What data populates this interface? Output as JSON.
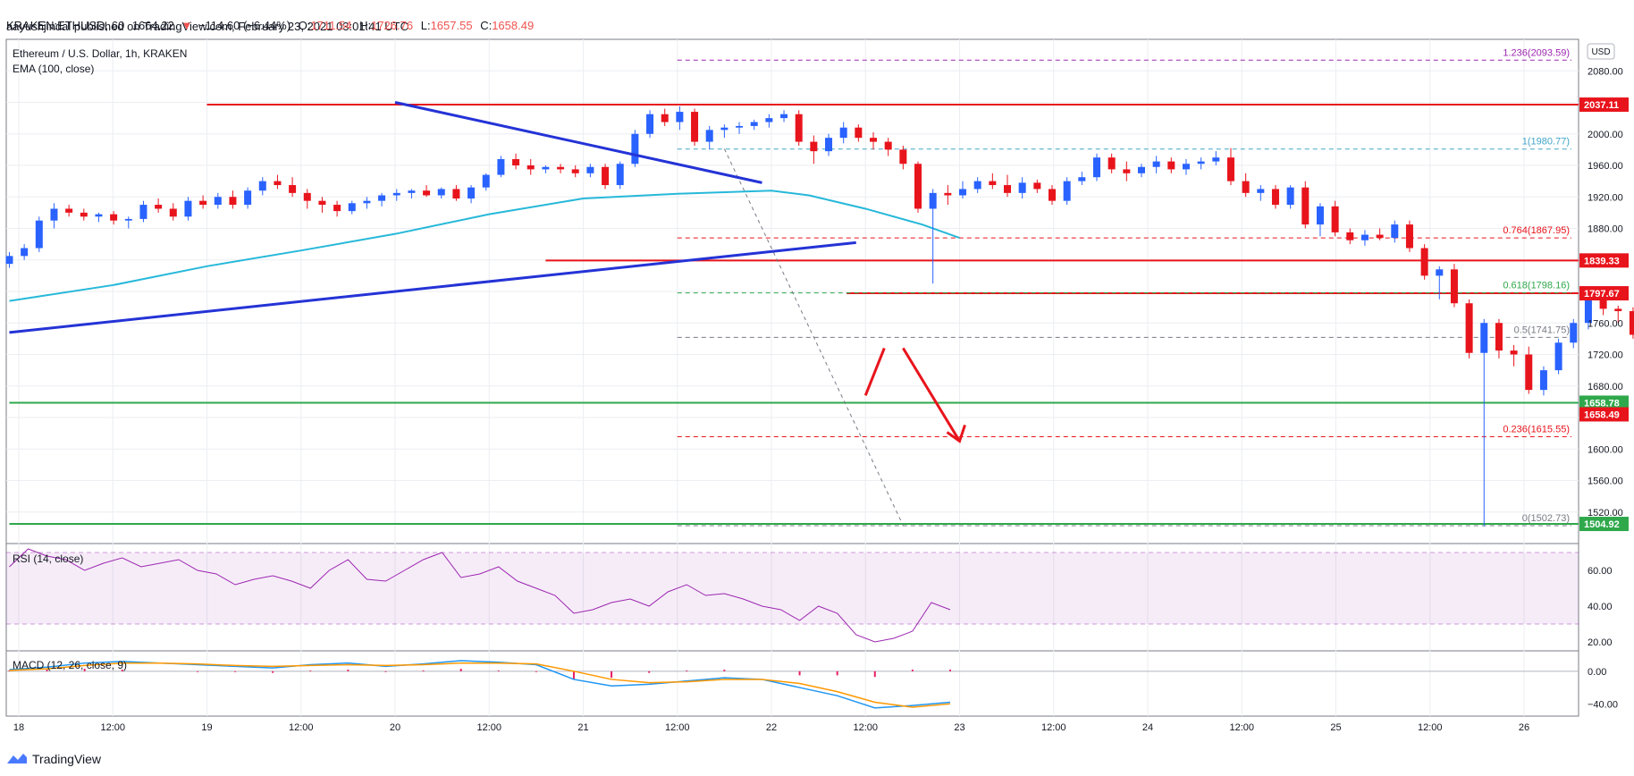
{
  "header": {
    "author": "aayushjindal",
    "published_text": "published on TradingView.com, February 23, 2021 03:01:41 UTC",
    "symbol": "KRAKEN:ETHUSD, 60",
    "last": "1664.22",
    "change": "−114.60 (−6.44%)",
    "o_label": "O:",
    "o_val": "1711.54",
    "h_label": "H:",
    "h_val": "1726.76",
    "l_label": "L:",
    "l_val": "1657.55",
    "c_label": "C:",
    "c_val": "1658.49"
  },
  "legend": {
    "title": "Ethereum / U.S. Dollar, 1h, KRAKEN",
    "ema": "EMA (100, close)",
    "currency": "USD",
    "rsi": "RSI (14, close)",
    "macd": "MACD (12, 26, close, 9)"
  },
  "footer": {
    "brand": "TradingView"
  },
  "colors": {
    "up": "#2962ff",
    "down": "#e8141c",
    "ema": "#26b8d9",
    "trend": "#2433d6",
    "hline": "#e8141c",
    "green": "#2fa84b",
    "fib_top": "#9c27b0",
    "fib_1": "#42a5c8",
    "rsi": "#9c27b0",
    "macd": "#2196f3",
    "signal": "#ff9800",
    "hist": "#e91e63"
  },
  "chart_data": [
    {
      "type": "candlestick",
      "title": "Ethereum / U.S. Dollar, 1h, KRAKEN",
      "y_range": [
        1480,
        2120
      ],
      "y_ticks": [
        1520,
        1560,
        1600,
        1640,
        1680,
        1720,
        1760,
        1800,
        1840,
        1880,
        1920,
        1960,
        2000,
        2040,
        2080
      ],
      "y_tick_labels": [
        "1520.00",
        "1560.00",
        "1600.00",
        "1640.00",
        "1680.00",
        "1720.00",
        "1760.00",
        "1800.00",
        "1840.00",
        "1880.00",
        "1920.00",
        "1960.00",
        "2000.00",
        "2040.00",
        "2080.00"
      ],
      "x_range_days": [
        17.95,
        26.5
      ],
      "x_ticks_days": [
        18,
        18.5,
        19,
        19.5,
        20,
        20.5,
        21,
        21.5,
        22,
        22.5,
        23,
        23.5,
        24,
        24.5,
        25,
        25.5,
        26
      ],
      "x_tick_labels": [
        "18",
        "12:00",
        "19",
        "12:00",
        "20",
        "12:00",
        "21",
        "12:00",
        "22",
        "12:00",
        "23",
        "12:00",
        "24",
        "12:00",
        "25",
        "12:00",
        "26"
      ],
      "candle_t0_day": 17.95,
      "candle_step_hours": 1.9,
      "candles": [
        [
          1835,
          1850,
          1830,
          1845
        ],
        [
          1845,
          1860,
          1840,
          1855
        ],
        [
          1855,
          1895,
          1850,
          1890
        ],
        [
          1890,
          1912,
          1880,
          1905
        ],
        [
          1905,
          1910,
          1895,
          1900
        ],
        [
          1900,
          1905,
          1890,
          1895
        ],
        [
          1895,
          1900,
          1888,
          1898
        ],
        [
          1898,
          1902,
          1885,
          1890
        ],
        [
          1890,
          1895,
          1880,
          1892
        ],
        [
          1892,
          1915,
          1888,
          1910
        ],
        [
          1910,
          1918,
          1900,
          1905
        ],
        [
          1905,
          1912,
          1890,
          1895
        ],
        [
          1895,
          1920,
          1890,
          1915
        ],
        [
          1915,
          1922,
          1905,
          1910
        ],
        [
          1910,
          1925,
          1905,
          1920
        ],
        [
          1920,
          1928,
          1905,
          1910
        ],
        [
          1910,
          1932,
          1905,
          1928
        ],
        [
          1928,
          1945,
          1922,
          1940
        ],
        [
          1940,
          1948,
          1930,
          1935
        ],
        [
          1935,
          1945,
          1920,
          1925
        ],
        [
          1925,
          1930,
          1905,
          1915
        ],
        [
          1915,
          1920,
          1900,
          1910
        ],
        [
          1910,
          1915,
          1895,
          1902
        ],
        [
          1902,
          1915,
          1898,
          1912
        ],
        [
          1912,
          1920,
          1905,
          1915
        ],
        [
          1915,
          1925,
          1908,
          1922
        ],
        [
          1922,
          1930,
          1915,
          1925
        ],
        [
          1925,
          1930,
          1918,
          1928
        ],
        [
          1928,
          1935,
          1920,
          1922
        ],
        [
          1922,
          1932,
          1918,
          1930
        ],
        [
          1930,
          1935,
          1915,
          1918
        ],
        [
          1918,
          1935,
          1912,
          1932
        ],
        [
          1932,
          1950,
          1928,
          1948
        ],
        [
          1948,
          1972,
          1945,
          1968
        ],
        [
          1968,
          1975,
          1955,
          1960
        ],
        [
          1960,
          1968,
          1948,
          1955
        ],
        [
          1955,
          1960,
          1950,
          1958
        ],
        [
          1958,
          1962,
          1950,
          1955
        ],
        [
          1955,
          1960,
          1945,
          1950
        ],
        [
          1950,
          1962,
          1945,
          1958
        ],
        [
          1958,
          1962,
          1930,
          1935
        ],
        [
          1935,
          1965,
          1930,
          1962
        ],
        [
          1962,
          2005,
          1958,
          2000
        ],
        [
          2000,
          2030,
          1995,
          2025
        ],
        [
          2025,
          2032,
          2010,
          2015
        ],
        [
          2015,
          2035,
          2005,
          2028
        ],
        [
          2028,
          2032,
          1985,
          1990
        ],
        [
          1990,
          2010,
          1980,
          2005
        ],
        [
          2005,
          2012,
          1995,
          2008
        ],
        [
          2008,
          2015,
          2000,
          2010
        ],
        [
          2010,
          2018,
          2005,
          2015
        ],
        [
          2015,
          2025,
          2008,
          2020
        ],
        [
          2020,
          2030,
          2015,
          2025
        ],
        [
          2025,
          2030,
          1985,
          1990
        ],
        [
          1990,
          1998,
          1962,
          1978
        ],
        [
          1978,
          2000,
          1972,
          1995
        ],
        [
          1995,
          2015,
          1988,
          2008
        ],
        [
          2008,
          2012,
          1990,
          1995
        ],
        [
          1995,
          2002,
          1980,
          1990
        ],
        [
          1990,
          1995,
          1972,
          1980
        ],
        [
          1980,
          1985,
          1955,
          1962
        ],
        [
          1962,
          1965,
          1900,
          1905
        ],
        [
          1905,
          1930,
          1810,
          1925
        ],
        [
          1925,
          1935,
          1910,
          1922
        ],
        [
          1922,
          1940,
          1918,
          1930
        ],
        [
          1930,
          1945,
          1925,
          1940
        ],
        [
          1940,
          1950,
          1930,
          1935
        ],
        [
          1935,
          1948,
          1920,
          1925
        ],
        [
          1925,
          1945,
          1918,
          1938
        ],
        [
          1938,
          1942,
          1925,
          1930
        ],
        [
          1930,
          1935,
          1910,
          1915
        ],
        [
          1915,
          1945,
          1910,
          1940
        ],
        [
          1940,
          1952,
          1935,
          1945
        ],
        [
          1945,
          1975,
          1940,
          1970
        ],
        [
          1970,
          1975,
          1950,
          1955
        ],
        [
          1955,
          1965,
          1940,
          1950
        ],
        [
          1950,
          1962,
          1945,
          1958
        ],
        [
          1958,
          1972,
          1950,
          1965
        ],
        [
          1965,
          1970,
          1950,
          1955
        ],
        [
          1955,
          1968,
          1948,
          1962
        ],
        [
          1962,
          1970,
          1955,
          1965
        ],
        [
          1965,
          1978,
          1960,
          1970
        ],
        [
          1970,
          1982,
          1935,
          1940
        ],
        [
          1940,
          1950,
          1920,
          1925
        ],
        [
          1925,
          1935,
          1915,
          1930
        ],
        [
          1930,
          1935,
          1905,
          1910
        ],
        [
          1910,
          1935,
          1905,
          1932
        ],
        [
          1932,
          1940,
          1880,
          1885
        ],
        [
          1885,
          1912,
          1870,
          1908
        ],
        [
          1908,
          1915,
          1870,
          1875
        ],
        [
          1875,
          1880,
          1860,
          1865
        ],
        [
          1865,
          1878,
          1858,
          1872
        ],
        [
          1872,
          1880,
          1865,
          1868
        ],
        [
          1868,
          1890,
          1862,
          1885
        ],
        [
          1885,
          1890,
          1850,
          1855
        ],
        [
          1855,
          1860,
          1815,
          1820
        ],
        [
          1820,
          1832,
          1790,
          1828
        ],
        [
          1828,
          1835,
          1780,
          1785
        ],
        [
          1785,
          1790,
          1715,
          1722
        ],
        [
          1722,
          1765,
          1502,
          1760
        ],
        [
          1760,
          1765,
          1715,
          1725
        ],
        [
          1725,
          1732,
          1705,
          1720
        ],
        [
          1720,
          1730,
          1670,
          1675
        ],
        [
          1675,
          1705,
          1668,
          1700
        ],
        [
          1700,
          1740,
          1695,
          1735
        ],
        [
          1735,
          1765,
          1728,
          1760
        ],
        [
          1760,
          1795,
          1752,
          1790
        ],
        [
          1790,
          1795,
          1770,
          1778
        ],
        [
          1778,
          1782,
          1760,
          1775
        ],
        [
          1775,
          1780,
          1740,
          1745
        ],
        [
          1745,
          1752,
          1700,
          1708
        ],
        [
          1708,
          1712,
          1658,
          1664
        ]
      ],
      "ema_100": [
        [
          17.95,
          1788
        ],
        [
          18.5,
          1808
        ],
        [
          19,
          1832
        ],
        [
          19.5,
          1852
        ],
        [
          20,
          1873
        ],
        [
          20.5,
          1898
        ],
        [
          21,
          1918
        ],
        [
          21.5,
          1924
        ],
        [
          22,
          1928
        ],
        [
          22.2,
          1922
        ],
        [
          22.5,
          1905
        ],
        [
          22.8,
          1885
        ],
        [
          23,
          1868
        ]
      ],
      "horizontal_levels": [
        {
          "price": 2037.11,
          "label": "2037.11",
          "color": "red",
          "from_day": 19.0
        },
        {
          "price": 1839.33,
          "label": "1839.33",
          "color": "red",
          "from_day": 20.8
        },
        {
          "price": 1797.67,
          "label": "1797.67",
          "color": "red",
          "from_day": 22.4
        },
        {
          "price": 1658.78,
          "label": "1658.78",
          "color": "green",
          "from_day": 17.95
        },
        {
          "price": 1504.92,
          "label": "1504.92",
          "color": "green",
          "from_day": 17.95
        }
      ],
      "last_price_label": "1658.49",
      "fib_levels": [
        {
          "ratio": "1.236",
          "price": 2093.59,
          "label": "1.236(2093.59)",
          "style": "top"
        },
        {
          "ratio": "1",
          "price": 1980.77,
          "label": "1(1980.77)",
          "style": "one"
        },
        {
          "ratio": "0.764",
          "price": 1867.95,
          "label": "0.764(1867.95)",
          "style": "red"
        },
        {
          "ratio": "0.618",
          "price": 1798.16,
          "label": "0.618(1798.16)",
          "style": "green"
        },
        {
          "ratio": "0.5",
          "price": 1741.75,
          "label": "0.5(1741.75)",
          "style": "gray"
        },
        {
          "ratio": "0.236",
          "price": 1615.55,
          "label": "0.236(1615.55)",
          "style": "red"
        },
        {
          "ratio": "0",
          "price": 1502.73,
          "label": "0(1502.73)",
          "style": "gray"
        }
      ],
      "fib_from_day": 21.5,
      "trendlines": [
        {
          "from": [
            20.0,
            2040
          ],
          "to": [
            21.95,
            1938
          ]
        },
        {
          "from": [
            17.95,
            1748
          ],
          "to": [
            22.45,
            1862
          ]
        }
      ],
      "fib_anchor_line": {
        "from": [
          21.75,
          1981
        ],
        "to": [
          22.7,
          1503
        ]
      },
      "projection_arrow": [
        [
          22.5,
          1668
        ],
        [
          22.6,
          1728
        ],
        [
          22.7,
          1728
        ],
        [
          23.0,
          1610
        ]
      ]
    },
    {
      "type": "line",
      "name": "RSI (14, close)",
      "y_range": [
        15,
        75
      ],
      "y_ticks": [
        20,
        40,
        60
      ],
      "y_tick_labels": [
        "20.00",
        "40.00",
        "60.00"
      ],
      "band": [
        30,
        70
      ],
      "x_days": [
        17.95,
        18.05,
        18.15,
        18.25,
        18.35,
        18.45,
        18.55,
        18.65,
        18.75,
        18.85,
        18.95,
        19.05,
        19.15,
        19.25,
        19.35,
        19.45,
        19.55,
        19.65,
        19.75,
        19.85,
        19.95,
        20.05,
        20.15,
        20.25,
        20.35,
        20.45,
        20.55,
        20.65,
        20.75,
        20.85,
        20.95,
        21.05,
        21.15,
        21.25,
        21.35,
        21.45,
        21.55,
        21.65,
        21.75,
        21.85,
        21.95,
        22.05,
        22.15,
        22.25,
        22.35,
        22.45,
        22.55,
        22.65,
        22.75,
        22.85,
        22.95
      ],
      "values": [
        62,
        72,
        68,
        66,
        60,
        64,
        67,
        62,
        64,
        66,
        60,
        58,
        52,
        55,
        57,
        54,
        50,
        60,
        66,
        55,
        54,
        60,
        66,
        70,
        56,
        58,
        62,
        54,
        50,
        46,
        36,
        38,
        42,
        44,
        40,
        48,
        52,
        46,
        47,
        44,
        40,
        38,
        32,
        40,
        36,
        24,
        20,
        22,
        26,
        42,
        38
      ]
    },
    {
      "type": "line",
      "name": "MACD (12, 26, close, 9)",
      "y_range": [
        -55,
        25
      ],
      "y_ticks": [
        0,
        -40
      ],
      "y_tick_labels": [
        "0.00",
        "−40.00"
      ],
      "x_days": [
        17.95,
        18.15,
        18.35,
        18.55,
        18.75,
        18.95,
        19.15,
        19.35,
        19.55,
        19.75,
        19.95,
        20.15,
        20.35,
        20.55,
        20.75,
        20.95,
        21.15,
        21.35,
        21.55,
        21.75,
        21.95,
        22.15,
        22.35,
        22.55,
        22.75,
        22.95
      ],
      "macd": [
        2,
        5,
        10,
        12,
        10,
        8,
        6,
        4,
        8,
        10,
        6,
        9,
        13,
        11,
        8,
        -10,
        -18,
        -16,
        -12,
        -8,
        -10,
        -20,
        -30,
        -45,
        -42,
        -38
      ],
      "signal": [
        1,
        3,
        7,
        10,
        10,
        9,
        7,
        6,
        7,
        8,
        7,
        8,
        10,
        10,
        9,
        0,
        -10,
        -14,
        -13,
        -10,
        -10,
        -15,
        -25,
        -38,
        -44,
        -40
      ],
      "histogram": [
        1,
        2,
        3,
        2,
        0,
        -1,
        -1,
        -2,
        1,
        2,
        -1,
        1,
        3,
        1,
        -1,
        -10,
        -8,
        -2,
        1,
        2,
        0,
        -5,
        -5,
        -7,
        2,
        2
      ]
    }
  ]
}
